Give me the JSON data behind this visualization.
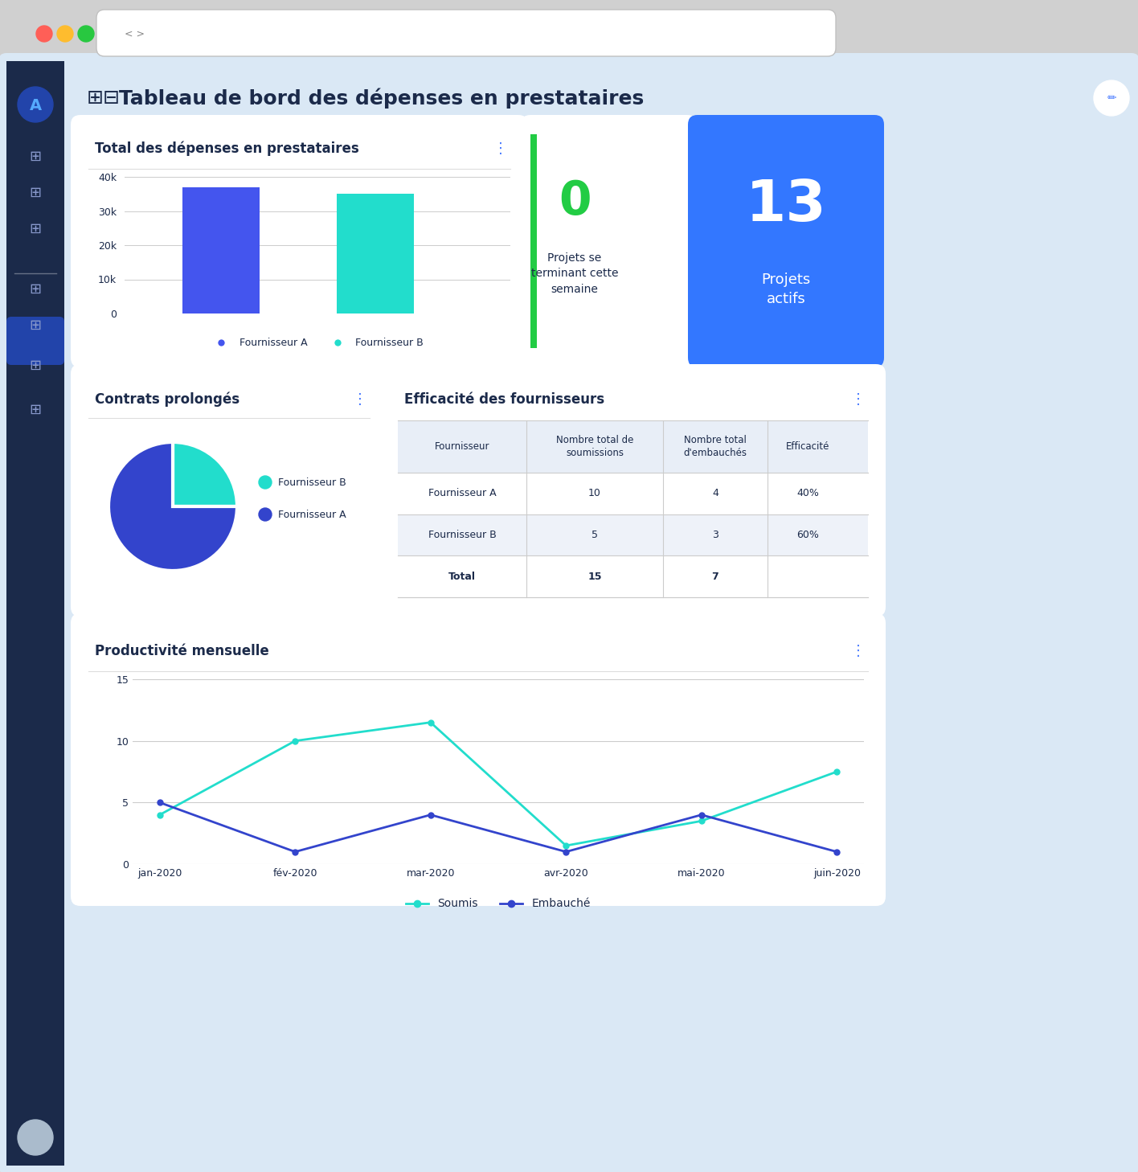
{
  "title": "Tableau de bord des dépenses en prestataires",
  "bg_color": "#dae8f5",
  "card_bg": "#ffffff",
  "sidebar_color": "#1b2a4a",
  "header_bg": "#dae8f5",
  "bar_title": "Total des dépenses en prestataires",
  "bar_categories": [
    "Fournisseur A",
    "Fournisseur B"
  ],
  "bar_values": [
    37000,
    35000
  ],
  "bar_colors": [
    "#4455ee",
    "#22ddcc"
  ],
  "bar_ylim": [
    0,
    40000
  ],
  "bar_yticks": [
    0,
    10000,
    20000,
    30000,
    40000
  ],
  "bar_ytick_labels": [
    "0",
    "10k",
    "20k",
    "30k",
    "40k"
  ],
  "kpi1_value": "0",
  "kpi1_label": "Projets se\nterminant cette\nsemaine",
  "kpi1_value_color": "#22cc44",
  "kpi1_border_color": "#22cc44",
  "kpi2_value": "13",
  "kpi2_label": "Projets\nactifs",
  "kpi2_bg": "#3377ff",
  "kpi2_text_color": "#ffffff",
  "pie_title": "Contrats prolongés",
  "pie_values": [
    25,
    75
  ],
  "pie_colors": [
    "#22ddcc",
    "#3344cc"
  ],
  "pie_labels": [
    "Fournisseur B",
    "Fournisseur A"
  ],
  "table_title": "Efficacité des fournisseurs",
  "table_headers": [
    "Fournisseur",
    "Nombre total de\nsoumissions",
    "Nombre total\nd'embauchés",
    "Efficacité"
  ],
  "table_rows": [
    [
      "Fournisseur A",
      "10",
      "4",
      "40%"
    ],
    [
      "Fournisseur B",
      "5",
      "3",
      "60%"
    ],
    [
      "Total",
      "15",
      "7",
      ""
    ]
  ],
  "table_row_colors": [
    "#ffffff",
    "#eef2f9",
    "#ffffff"
  ],
  "line_title": "Productivité mensuelle",
  "line_months": [
    "jan-2020",
    "fév-2020",
    "mar-2020",
    "avr-2020",
    "mai-2020",
    "juin-2020"
  ],
  "line_soumis": [
    4,
    10,
    11.5,
    1.5,
    3.5,
    7.5
  ],
  "line_embauche": [
    5,
    1,
    4,
    1,
    4,
    1
  ],
  "line_soumis_color": "#22ddcc",
  "line_embauche_color": "#3344cc",
  "line_ylim": [
    0,
    15
  ],
  "line_yticks": [
    0,
    5,
    10,
    15
  ],
  "dark_blue": "#1b2a4a",
  "text_color": "#1b2a4a",
  "accent_blue": "#3377ff",
  "dots_color": "#4477ff"
}
